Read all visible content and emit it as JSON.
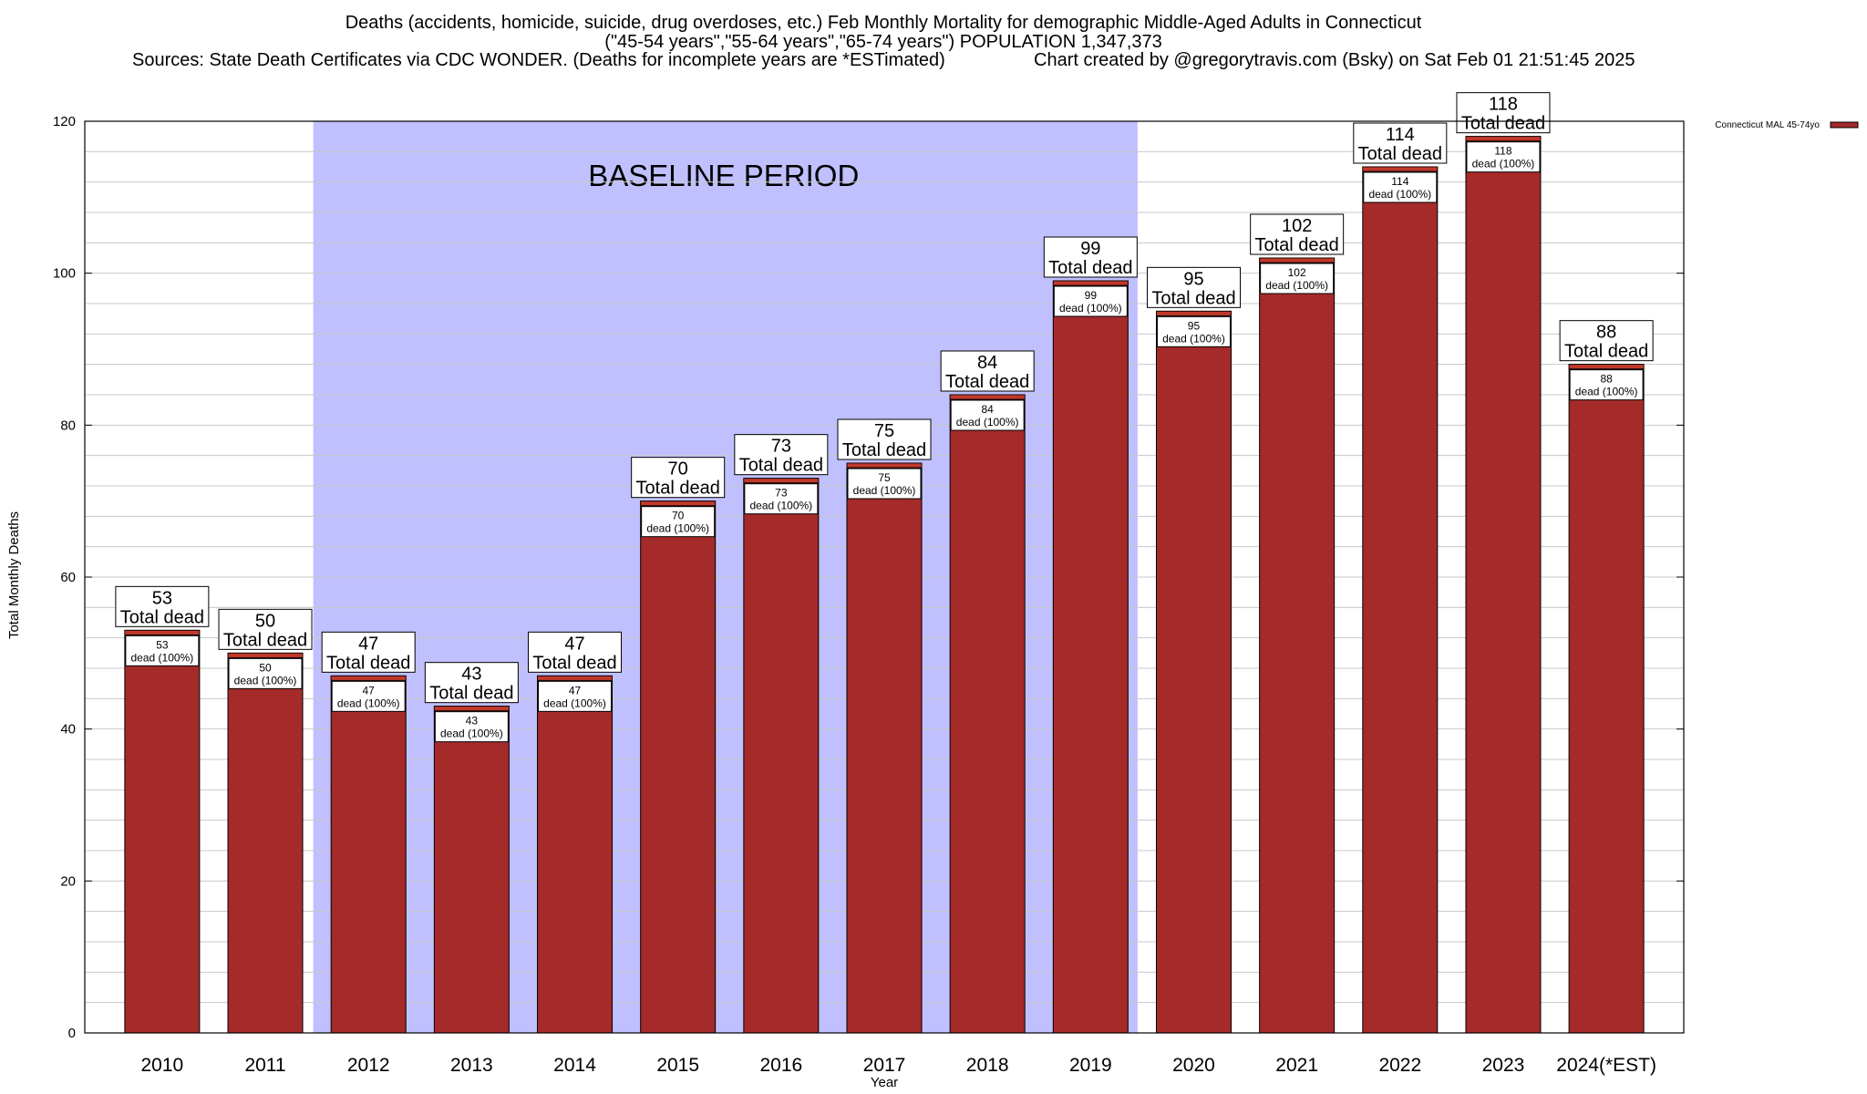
{
  "chart_data": {
    "type": "bar",
    "title_lines": [
      "Deaths (accidents, homicide, suicide, drug overdoses, etc.) Feb Monthly Mortality for demographic Middle-Aged Adults in Connecticut",
      "(\"45-54 years\",\"55-64 years\",\"65-74 years\") POPULATION 1,347,373",
      "Sources: State Death Certificates via CDC WONDER. (Deaths for incomplete years are *ESTimated)",
      "Chart created by @gregorytravis.com (Bsky) on Sat Feb 01 21:51:45 2025"
    ],
    "xlabel": "Year",
    "ylabel": "Total Monthly Deaths",
    "ylim": [
      0,
      120
    ],
    "yticks": [
      0,
      20,
      40,
      60,
      80,
      100,
      120
    ],
    "grid": true,
    "categories": [
      "2010",
      "2011",
      "2012",
      "2013",
      "2014",
      "2015",
      "2016",
      "2017",
      "2018",
      "2019",
      "2020",
      "2021",
      "2022",
      "2023",
      "2024(*EST)"
    ],
    "series": [
      {
        "name": "Connecticut MAL 45-74yo",
        "values": [
          53,
          50,
          47,
          43,
          47,
          70,
          73,
          75,
          84,
          99,
          95,
          102,
          114,
          118,
          88
        ]
      }
    ],
    "bar_label_total": "Total dead",
    "bar_label_detail": "dead (100%)",
    "baseline_period": {
      "label": "BASELINE PERIOD",
      "start": "2012",
      "end": "2019"
    },
    "legend_position": "top-right",
    "colors": {
      "bar_fill": "#a52a2a",
      "bar_top": "#c0392b",
      "baseline_shade": "#c0c0ff",
      "grid": "#c8c8c8",
      "plot_border": "#000000"
    }
  }
}
